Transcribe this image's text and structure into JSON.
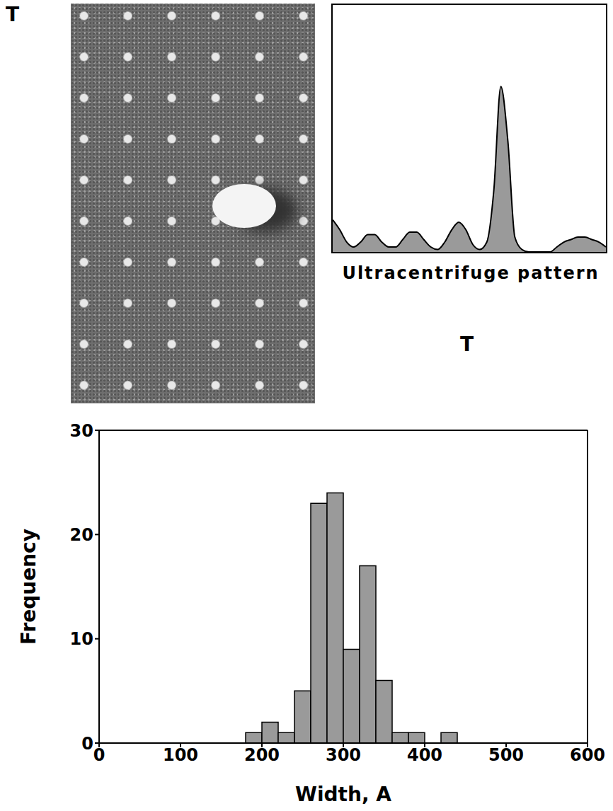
{
  "micrograph": {
    "label": "T"
  },
  "chart_data": [
    {
      "type": "area",
      "title": "Ultracentrifuge pattern",
      "annotation": "T",
      "tick_labels": false,
      "x": [
        0,
        1,
        2,
        3,
        4,
        5,
        6,
        7,
        8,
        9,
        10,
        11,
        12,
        13,
        14,
        15,
        16,
        17,
        18,
        19,
        20,
        21,
        22,
        23,
        24,
        25,
        26,
        27,
        28,
        29,
        30,
        31,
        32,
        33,
        34,
        35,
        36,
        37,
        38,
        39
      ],
      "values": [
        13,
        9,
        4,
        2,
        4,
        7,
        7,
        4,
        2,
        2,
        5,
        8,
        8,
        5,
        2,
        1,
        4,
        9,
        12,
        9,
        3,
        1,
        4,
        25,
        67,
        45,
        6,
        1,
        0,
        0,
        0,
        0,
        2,
        4,
        5,
        6,
        6,
        5,
        4,
        2
      ],
      "xlim": [
        0,
        39
      ],
      "ylim": [
        0,
        100
      ],
      "color": "#9a9a9a"
    },
    {
      "type": "histogram",
      "xlabel": "Width, A",
      "ylabel": "Frequency",
      "bins": [
        180,
        200,
        220,
        240,
        260,
        280,
        300,
        320,
        340,
        360,
        380,
        400,
        420,
        440
      ],
      "counts": [
        1,
        2,
        1,
        5,
        23,
        24,
        9,
        17,
        6,
        1,
        1,
        0,
        1
      ],
      "xlim": [
        0,
        600
      ],
      "xticks": [
        0,
        100,
        200,
        300,
        400,
        500,
        600
      ],
      "ylim": [
        0,
        30
      ],
      "yticks": [
        0,
        10,
        20,
        30
      ],
      "color": "#9a9a9a",
      "grid": false
    }
  ]
}
